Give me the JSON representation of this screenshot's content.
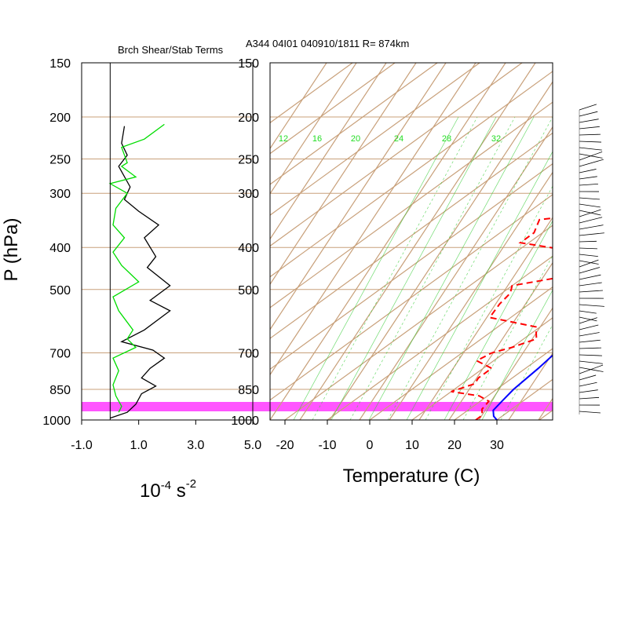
{
  "left_title": "Brch Shear/Stab Terms",
  "right_title": "A344 04I01 040910/1811 R= 874km",
  "ylabel": "P (hPa)",
  "left_xlabel": "10",
  "left_xlabel_exp": "-4",
  "left_xlabel_unit": "s",
  "left_xlabel_unit_exp": "-2",
  "right_xlabel": "Temperature (C)",
  "colors": {
    "temperature": "#0000ff",
    "dewpoint": "#ff0000",
    "shear": "#000000",
    "stability": "#00dd00",
    "surface_band": "#ff55ff",
    "skewt_lines": "#c8a07a",
    "mixing_ratio": "#33cc33"
  },
  "chart_data": [
    {
      "type": "line",
      "title": "Brch Shear/Stab Terms",
      "ylabel": "P (hPa)",
      "xlabel": "10-4 s -2",
      "y_scale": "log",
      "ylim": [
        1000,
        150
      ],
      "xlim": [
        -1.0,
        5.0
      ],
      "x_ticks": [
        "-1.0",
        "1.0",
        "3.0",
        "5.0"
      ],
      "y_ticks": [
        "150",
        "200",
        "250",
        "300",
        "400",
        "500",
        "700",
        "850",
        "1000"
      ],
      "series": [
        {
          "color": "#000000",
          "points": [
            [
              0.5,
              210
            ],
            [
              0.4,
              230
            ],
            [
              0.6,
              245
            ],
            [
              0.3,
              260
            ],
            [
              0.7,
              290
            ],
            [
              0.5,
              310
            ],
            [
              1.0,
              330
            ],
            [
              1.7,
              355
            ],
            [
              1.2,
              380
            ],
            [
              1.6,
              420
            ],
            [
              1.3,
              445
            ],
            [
              2.1,
              490
            ],
            [
              1.4,
              530
            ],
            [
              2.1,
              560
            ],
            [
              1.2,
              620
            ],
            [
              0.4,
              660
            ],
            [
              1.5,
              690
            ],
            [
              1.9,
              720
            ],
            [
              1.4,
              760
            ],
            [
              1.1,
              800
            ],
            [
              1.6,
              835
            ],
            [
              1.1,
              870
            ],
            [
              0.9,
              920
            ],
            [
              0.6,
              960
            ],
            [
              0.0,
              990
            ]
          ]
        },
        {
          "color": "#00dd00",
          "points": [
            [
              1.9,
              208
            ],
            [
              1.2,
              225
            ],
            [
              0.4,
              235
            ],
            [
              0.6,
              255
            ],
            [
              0.4,
              260
            ],
            [
              0.9,
              275
            ],
            [
              0.0,
              285
            ],
            [
              0.6,
              300
            ],
            [
              0.2,
              325
            ],
            [
              0.1,
              355
            ],
            [
              0.5,
              380
            ],
            [
              0.1,
              410
            ],
            [
              0.4,
              440
            ],
            [
              1.0,
              480
            ],
            [
              0.1,
              520
            ],
            [
              0.3,
              560
            ],
            [
              0.8,
              620
            ],
            [
              0.6,
              650
            ],
            [
              0.9,
              680
            ],
            [
              0.1,
              720
            ],
            [
              0.3,
              770
            ],
            [
              0.1,
              830
            ],
            [
              0.2,
              880
            ],
            [
              0.4,
              930
            ],
            [
              0.3,
              960
            ]
          ]
        }
      ]
    },
    {
      "type": "line",
      "title": "A344 04I01 040910/1811 R= 874km",
      "xlabel": "Temperature (C)",
      "ylabel": "P (hPa)",
      "y_scale": "log",
      "ylim": [
        1000,
        150
      ],
      "xlim": [
        -23,
        42
      ],
      "skew": true,
      "x_ticks": [
        "-20",
        "-10",
        "0",
        "10",
        "20",
        "30"
      ],
      "y_ticks": [
        "150",
        "200",
        "250",
        "300",
        "400",
        "500",
        "700",
        "850",
        "1000"
      ],
      "mixing_ratio_labels": [
        "12",
        "16",
        "20",
        "24",
        "28",
        "32"
      ],
      "series": [
        {
          "name": "",
          "color": "#0000ff",
          "style": "solid",
          "points": [
            [
              30,
              1000
            ],
            [
              28,
              980
            ],
            [
              26,
              950
            ],
            [
              25,
              900
            ],
            [
              24,
              850
            ],
            [
              23,
              760
            ],
            [
              22,
              700
            ],
            [
              19,
              640
            ],
            [
              18,
              600
            ],
            [
              18,
              520
            ],
            [
              17,
              470
            ],
            [
              16,
              430
            ],
            [
              15,
              400
            ],
            [
              14,
              370
            ],
            [
              13,
              340
            ],
            [
              12,
              315
            ],
            [
              11,
              295
            ],
            [
              9,
              270
            ],
            [
              7,
              245
            ],
            [
              4,
              220
            ],
            [
              1,
              200
            ]
          ]
        },
        {
          "name": "",
          "color": "#ff0000",
          "style": "dashed",
          "points": [
            [
              25,
              1000
            ],
            [
              25,
              975
            ],
            [
              23,
              945
            ],
            [
              22,
              905
            ],
            [
              18,
              880
            ],
            [
              10,
              860
            ],
            [
              13,
              825
            ],
            [
              12,
              800
            ],
            [
              12,
              760
            ],
            [
              6,
              730
            ],
            [
              7,
              700
            ],
            [
              10,
              680
            ],
            [
              13,
              650
            ],
            [
              9,
              610
            ],
            [
              -5,
              580
            ],
            [
              -7,
              540
            ],
            [
              -8,
              510
            ],
            [
              -10,
              490
            ],
            [
              -2,
              470
            ],
            [
              5,
              450
            ],
            [
              1,
              430
            ],
            [
              -5,
              410
            ],
            [
              -22,
              390
            ],
            [
              -22,
              370
            ],
            [
              -25,
              345
            ],
            [
              -20,
              340
            ],
            [
              -10,
              335
            ],
            [
              -7,
              325
            ],
            [
              -8,
              305
            ],
            [
              -9,
              290
            ],
            [
              -10,
              280
            ],
            [
              -13,
              260
            ],
            [
              -12,
              245
            ],
            [
              -11,
              235
            ],
            [
              -6,
              225
            ]
          ]
        }
      ]
    }
  ]
}
